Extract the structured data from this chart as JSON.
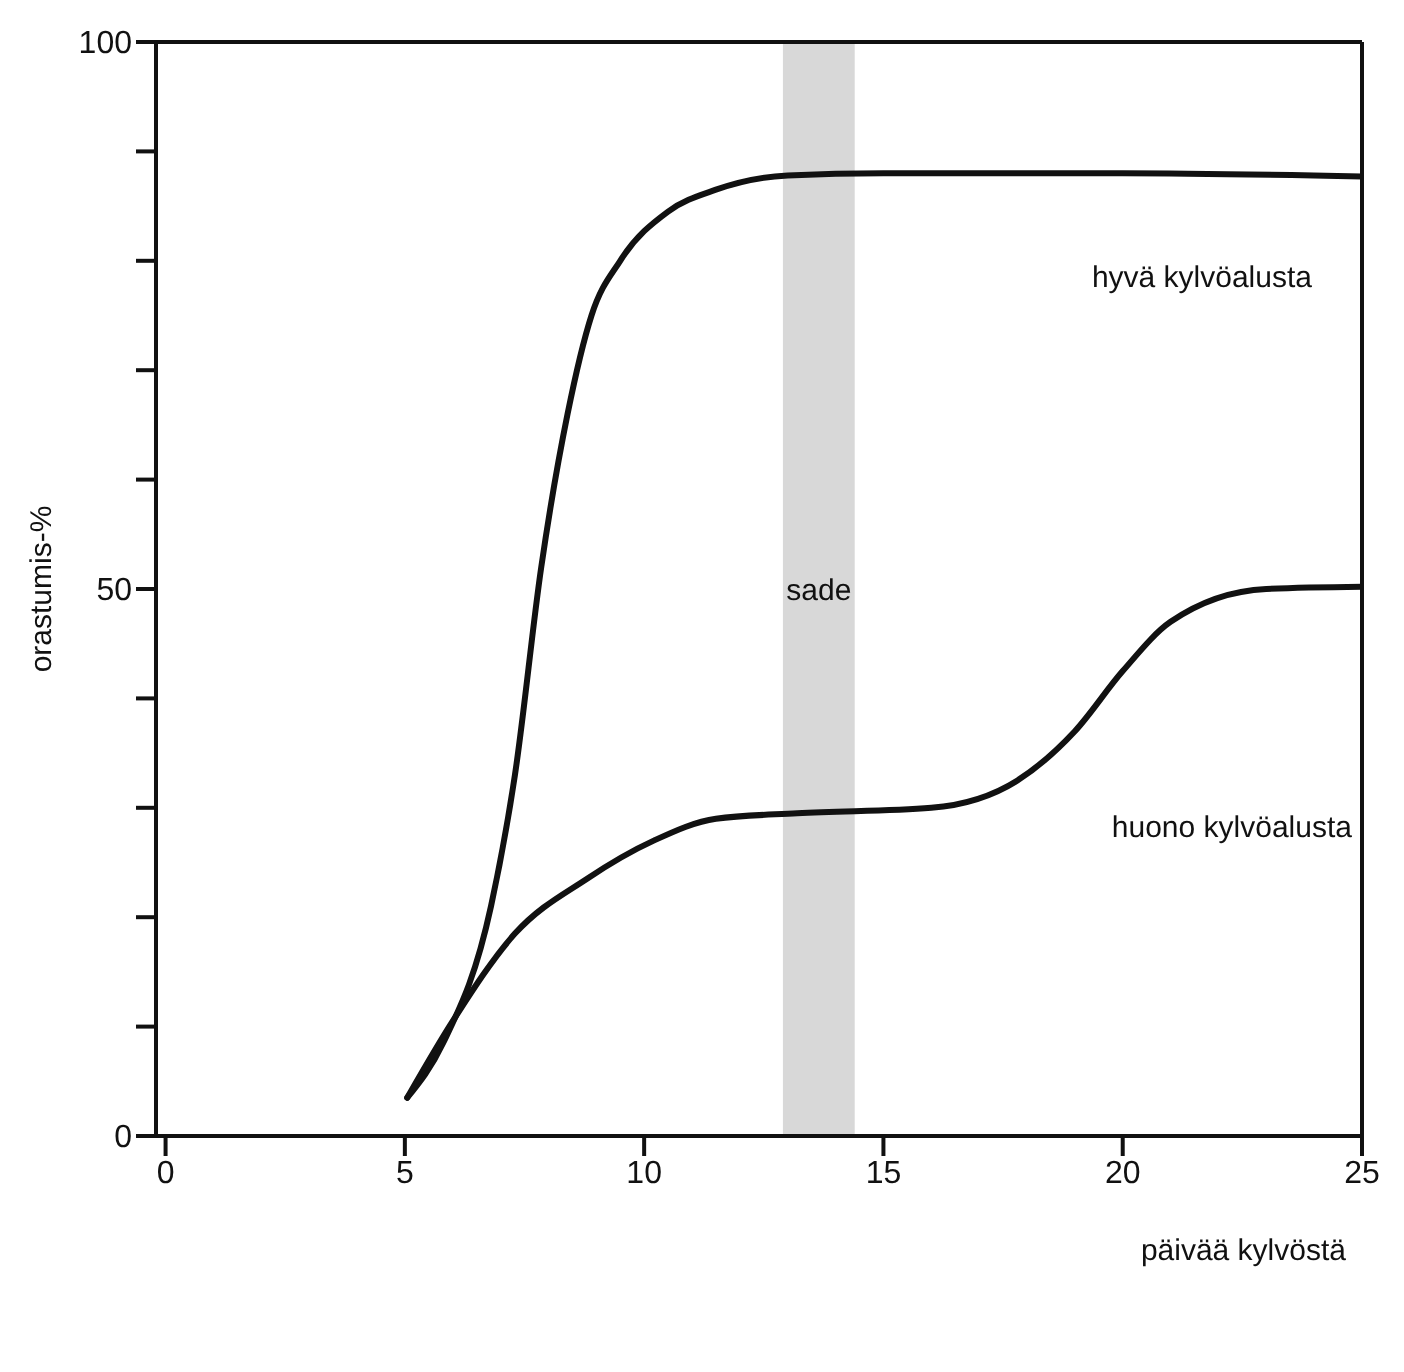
{
  "chart_data": {
    "type": "line",
    "xlabel": "päivää kylvöstä",
    "ylabel": "orastumis-%",
    "xlim": [
      -0.2,
      25
    ],
    "xticks": [
      0,
      5,
      10,
      15,
      20,
      25
    ],
    "ylim": [
      0,
      100
    ],
    "yticks": [
      0,
      {
        "value": 10,
        "label": null
      },
      {
        "value": 20,
        "label": null
      },
      {
        "value": 30,
        "label": null
      },
      {
        "value": 40,
        "label": null
      },
      50,
      {
        "value": 60,
        "label": null
      },
      {
        "value": 70,
        "label": null
      },
      {
        "value": 80,
        "label": null
      },
      {
        "value": 90,
        "label": null
      },
      100
    ],
    "marker": "none",
    "line_style": "solid",
    "series": [
      {
        "name": "hyvä kylvöalusta",
        "color": "#111111",
        "x": [
          5.05,
          5.8,
          6.8,
          7.3,
          7.85,
          8.4,
          8.9,
          9.5,
          10.5,
          11.5,
          13,
          15,
          20,
          25
        ],
        "values": [
          3.5,
          8.5,
          21,
          33,
          52,
          66,
          75,
          80,
          84.5,
          86.5,
          87.8,
          88,
          88,
          87.7
        ]
      },
      {
        "name": "huono kylvöalusta",
        "color": "#111111",
        "x": [
          5.05,
          6,
          7.3,
          8.8,
          10.2,
          11.5,
          13.2,
          16,
          17.8,
          19,
          20,
          21,
          23,
          25
        ],
        "values": [
          3.5,
          10.5,
          18.5,
          23.5,
          27,
          29,
          29.5,
          30,
          32.5,
          37,
          42.5,
          47,
          50,
          50.2
        ]
      }
    ],
    "bands": [
      {
        "axis": "x",
        "from": 12.9,
        "to": 14.4,
        "label": "sade",
        "color": "#d8d8d8"
      }
    ]
  }
}
